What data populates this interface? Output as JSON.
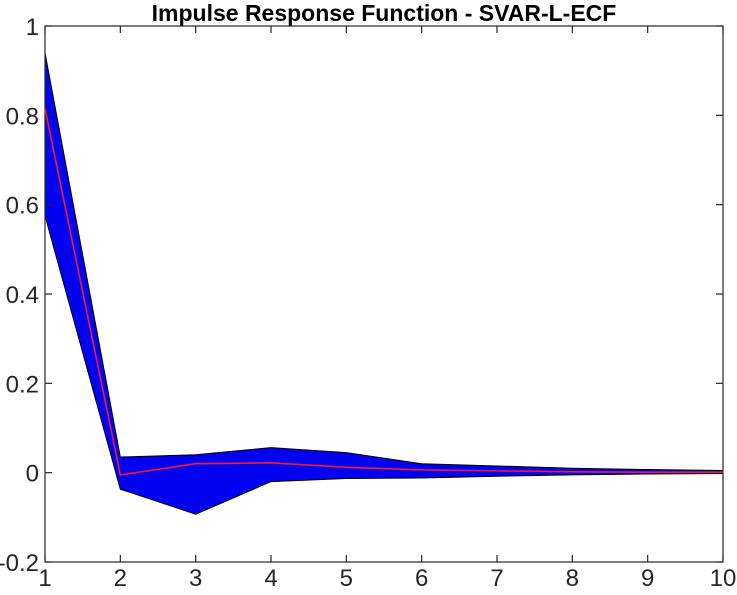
{
  "chart_data": {
    "type": "area",
    "title": "Impulse Response Function - SVAR-L-ECF",
    "x": [
      1,
      2,
      3,
      4,
      5,
      6,
      7,
      8,
      9,
      10
    ],
    "series": [
      {
        "name": "upper_confidence_bound",
        "values": [
          0.94,
          0.035,
          0.04,
          0.056,
          0.045,
          0.02,
          0.015,
          0.01,
          0.007,
          0.005
        ]
      },
      {
        "name": "irf_point_estimate",
        "values": [
          0.815,
          -0.005,
          0.02,
          0.022,
          0.012,
          0.006,
          0.004,
          0.002,
          0.001,
          0.001
        ]
      },
      {
        "name": "lower_confidence_bound",
        "values": [
          0.575,
          -0.037,
          -0.093,
          -0.02,
          -0.013,
          -0.012,
          -0.008,
          -0.005,
          -0.003,
          -0.002
        ]
      }
    ],
    "xlabel": "",
    "ylabel": "",
    "xlim": [
      1,
      10
    ],
    "ylim": [
      -0.2,
      1
    ],
    "x_tick_values": [
      1,
      2,
      3,
      4,
      5,
      6,
      7,
      8,
      9,
      10
    ],
    "x_tick_labels": [
      "1",
      "2",
      "3",
      "4",
      "5",
      "6",
      "7",
      "8",
      "9",
      "10"
    ],
    "y_tick_values": [
      -0.2,
      0,
      0.2,
      0.4,
      0.6,
      0.8,
      1
    ],
    "y_tick_labels": [
      "-0.2",
      "0",
      "0.2",
      "0.4",
      "0.6",
      "0.8",
      "1"
    ],
    "grid": false,
    "legend": null,
    "colors": {
      "band_fill": "#0202f0",
      "band_edge": "#000000",
      "line": "#ee1c2e",
      "axis": "#262626",
      "tick_label": "#262626",
      "title": "#000000",
      "background": "#ffffff"
    }
  }
}
